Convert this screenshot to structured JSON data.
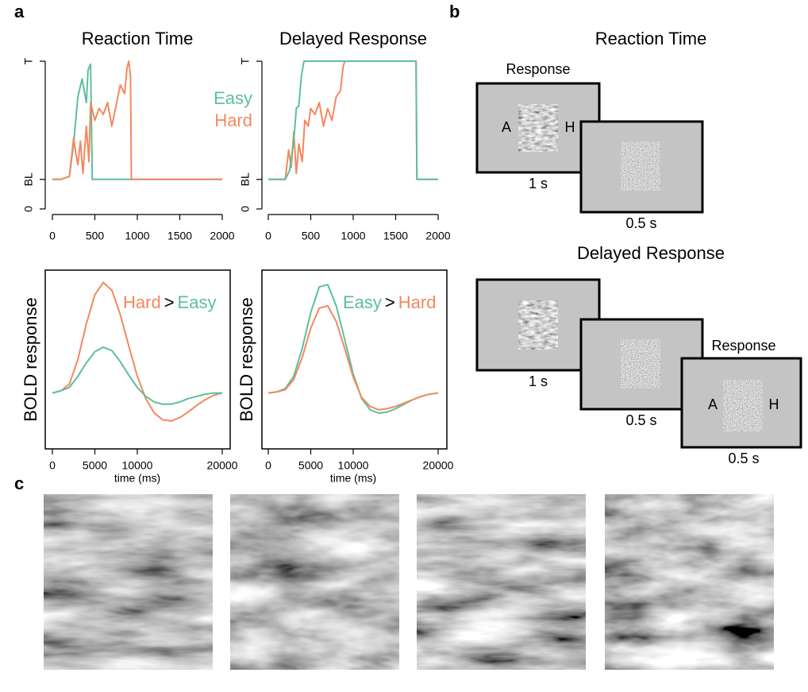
{
  "panel_labels": [
    "a",
    "b",
    "c"
  ],
  "chart_data": [
    {
      "type": "line",
      "title": "Reaction Time",
      "xlim": [
        0,
        2000
      ],
      "xticks": [
        0,
        500,
        1000,
        1500,
        2000
      ],
      "ylim": [
        0,
        5.2
      ],
      "yticks": [
        0,
        {
          "value": 1,
          "label": "BL"
        },
        {
          "value": 5,
          "label": "T"
        }
      ],
      "legend": true,
      "series": [
        {
          "name": "Easy",
          "color": "#5dbf9c",
          "x": [
            0,
            100,
            200,
            250,
            300,
            350,
            400,
            420,
            450,
            470,
            500,
            1000,
            1500,
            2000
          ],
          "values": [
            1,
            1,
            1.1,
            2.2,
            3.8,
            4.4,
            3.6,
            4.7,
            4.9,
            1,
            1,
            1,
            1,
            1
          ]
        },
        {
          "name": "Hard",
          "color": "#f4885f",
          "x": [
            0,
            100,
            200,
            250,
            280,
            300,
            330,
            360,
            400,
            430,
            450,
            500,
            550,
            600,
            650,
            700,
            750,
            800,
            850,
            880,
            900,
            920,
            930,
            1000,
            1500,
            2000
          ],
          "values": [
            1,
            1,
            1.1,
            2.4,
            1.8,
            1.5,
            2.3,
            1.2,
            2.8,
            1.6,
            3.6,
            3.0,
            3.4,
            3.2,
            3.6,
            2.8,
            3.5,
            4.2,
            3.9,
            4.8,
            5.0,
            4.5,
            1,
            1,
            1,
            1
          ]
        }
      ]
    },
    {
      "type": "line",
      "title": "Delayed Response",
      "xlim": [
        0,
        2000
      ],
      "xticks": [
        0,
        500,
        1000,
        1500,
        2000
      ],
      "ylim": [
        0,
        5.2
      ],
      "yticks": [
        0,
        {
          "value": 1,
          "label": "BL"
        },
        {
          "value": 5,
          "label": "T"
        }
      ],
      "legend": false,
      "series": [
        {
          "name": "Hard",
          "color": "#f4885f",
          "x": [
            0,
            200,
            240,
            270,
            300,
            330,
            360,
            400,
            430,
            470,
            500,
            550,
            600,
            650,
            700,
            750,
            800,
            850,
            880,
            900,
            950,
            1000,
            1740,
            1750,
            1800,
            2000
          ],
          "values": [
            1,
            1,
            2.0,
            1.4,
            2.6,
            1.2,
            2.2,
            1.6,
            3.0,
            2.8,
            3.4,
            3.2,
            3.6,
            2.8,
            3.4,
            3.0,
            3.8,
            4.0,
            4.8,
            5,
            5,
            5,
            5,
            1,
            1,
            1
          ]
        },
        {
          "name": "Easy",
          "color": "#5dbf9c",
          "x": [
            0,
            200,
            250,
            300,
            330,
            360,
            390,
            420,
            450,
            1000,
            1740,
            1750,
            1800,
            2000
          ],
          "values": [
            1,
            1,
            1.3,
            2.3,
            3.4,
            3.5,
            4.5,
            5,
            5,
            5,
            5,
            1,
            1,
            1
          ]
        }
      ]
    },
    {
      "type": "line",
      "xlabel": "time (ms)",
      "ylabel": "BOLD response",
      "xlim": [
        0,
        20000
      ],
      "xticks": [
        0,
        5000,
        10000,
        20000
      ],
      "ylim": [
        -0.5,
        1.1
      ],
      "legend": false,
      "annotations": [
        {
          "text": "Hard",
          "color": "#f4885f"
        },
        {
          "text": ">",
          "color": "#000000"
        },
        {
          "text": "Easy",
          "color": "#5dbf9c"
        }
      ],
      "x": [
        0,
        1000,
        2000,
        3000,
        4000,
        5000,
        6000,
        7000,
        8000,
        9000,
        10000,
        11000,
        12000,
        13000,
        14000,
        15000,
        16000,
        17000,
        18000,
        19000,
        20000
      ],
      "series": [
        {
          "name": "Hard",
          "color": "#f4885f",
          "values": [
            0,
            0.02,
            0.08,
            0.3,
            0.62,
            0.88,
            0.99,
            0.92,
            0.7,
            0.42,
            0.15,
            -0.05,
            -0.18,
            -0.24,
            -0.25,
            -0.22,
            -0.17,
            -0.11,
            -0.06,
            -0.02,
            0
          ]
        },
        {
          "name": "Easy",
          "color": "#5dbf9c",
          "values": [
            0,
            0.02,
            0.05,
            0.15,
            0.27,
            0.37,
            0.41,
            0.38,
            0.28,
            0.16,
            0.05,
            -0.03,
            -0.08,
            -0.1,
            -0.1,
            -0.08,
            -0.05,
            -0.03,
            -0.01,
            0,
            0
          ]
        }
      ]
    },
    {
      "type": "line",
      "xlabel": "time (ms)",
      "ylabel": "BOLD response",
      "xlim": [
        0,
        20000
      ],
      "xticks": [
        0,
        5000,
        10000,
        20000
      ],
      "ylim": [
        -0.5,
        1.1
      ],
      "legend": false,
      "annotations": [
        {
          "text": "Easy",
          "color": "#5dbf9c"
        },
        {
          "text": ">",
          "color": "#000000"
        },
        {
          "text": "Hard",
          "color": "#f4885f"
        }
      ],
      "x": [
        0,
        1000,
        2000,
        3000,
        4000,
        5000,
        6000,
        7000,
        8000,
        9000,
        10000,
        11000,
        12000,
        13000,
        14000,
        15000,
        16000,
        17000,
        18000,
        19000,
        20000
      ],
      "series": [
        {
          "name": "Easy",
          "color": "#5dbf9c",
          "values": [
            0,
            0.01,
            0.04,
            0.15,
            0.4,
            0.72,
            0.95,
            0.97,
            0.78,
            0.48,
            0.17,
            -0.05,
            -0.15,
            -0.18,
            -0.17,
            -0.14,
            -0.1,
            -0.06,
            -0.03,
            -0.01,
            0
          ]
        },
        {
          "name": "Hard",
          "color": "#f4885f",
          "values": [
            0,
            0.01,
            0.03,
            0.12,
            0.32,
            0.58,
            0.76,
            0.78,
            0.64,
            0.4,
            0.14,
            -0.04,
            -0.12,
            -0.15,
            -0.14,
            -0.12,
            -0.09,
            -0.06,
            -0.03,
            -0.01,
            0
          ]
        }
      ]
    }
  ],
  "panel_b": {
    "sections": [
      {
        "title": "Reaction Time",
        "response_label": "Response",
        "screens": [
          {
            "duration": "1 s",
            "left": "A",
            "right": "H"
          },
          {
            "duration": "0.5 s"
          }
        ]
      },
      {
        "title": "Delayed Response",
        "response_label": "Response",
        "screens": [
          {
            "duration": "1 s"
          },
          {
            "duration": "0.5 s"
          },
          {
            "duration": "0.5 s",
            "left": "A",
            "right": "H"
          }
        ]
      }
    ]
  }
}
